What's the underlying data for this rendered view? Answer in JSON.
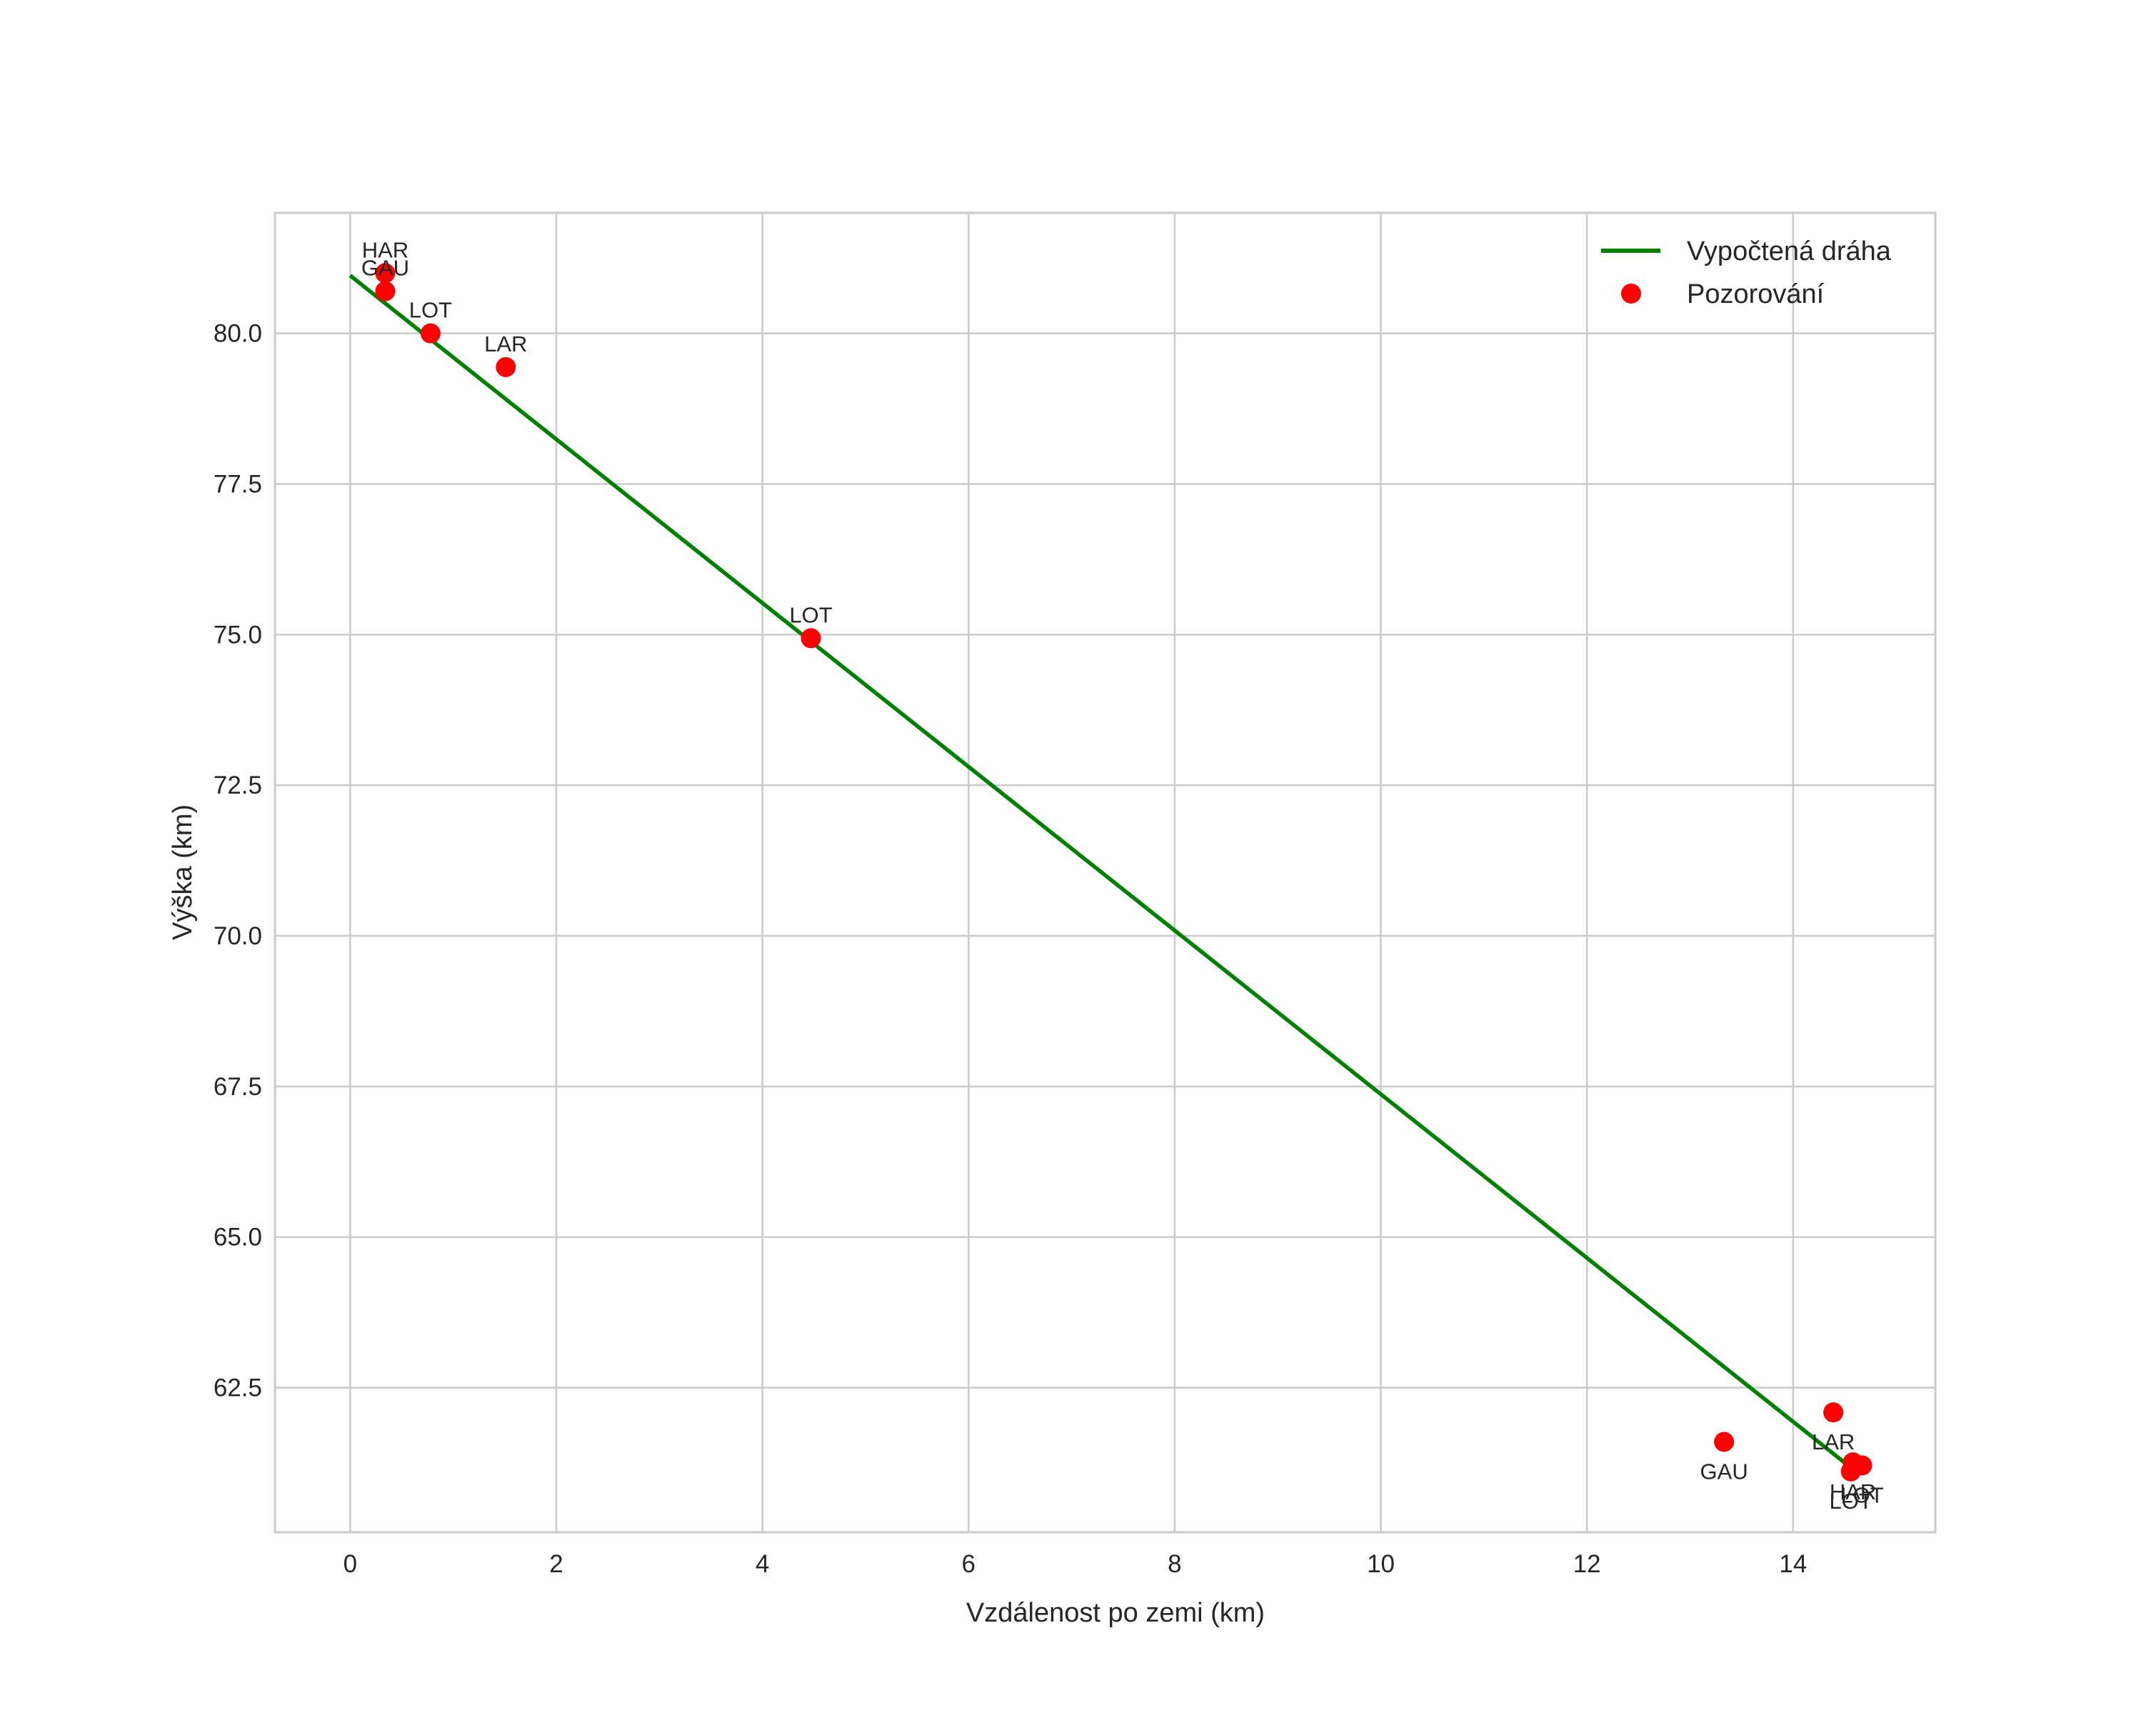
{
  "figure": {
    "background": "#ffffff",
    "grid_color": "#cccccc",
    "text_color": "#262626"
  },
  "chart_data": {
    "type": "scatter",
    "title": "",
    "xlabel": "Vzdálenost po zemi (km)",
    "ylabel": "Výška (km)",
    "xlim": [
      -0.73,
      15.38
    ],
    "ylim": [
      60.1,
      82.0
    ],
    "xticks": [
      0,
      2,
      4,
      6,
      8,
      10,
      12,
      14
    ],
    "xtick_labels": [
      "0",
      "2",
      "4",
      "6",
      "8",
      "10",
      "12",
      "14"
    ],
    "yticks": [
      62.5,
      65.0,
      67.5,
      70.0,
      72.5,
      75.0,
      77.5,
      80.0
    ],
    "ytick_labels": [
      "62.5",
      "65.0",
      "67.5",
      "70.0",
      "72.5",
      "75.0",
      "77.5",
      "80.0"
    ],
    "grid": true,
    "legend_position": "upper right",
    "series": [
      {
        "name": "Vypočtená dráha",
        "type": "line",
        "color": "#008000",
        "x": [
          0.0,
          14.6
        ],
        "y": [
          80.96,
          61.12
        ]
      },
      {
        "name": "Pozorování",
        "type": "scatter",
        "color": "#ff0000",
        "points": [
          {
            "x": 0.34,
            "y": 81.0,
            "label": "HAR",
            "label_pos": "above"
          },
          {
            "x": 0.34,
            "y": 80.7,
            "label": "GAU",
            "label_pos": "above"
          },
          {
            "x": 0.78,
            "y": 80.0,
            "label": "LOT",
            "label_pos": "above"
          },
          {
            "x": 1.51,
            "y": 79.44,
            "label": "LAR",
            "label_pos": "above"
          },
          {
            "x": 4.47,
            "y": 74.94,
            "label": "LOT",
            "label_pos": "above"
          },
          {
            "x": 13.33,
            "y": 61.6,
            "label": "GAU",
            "label_pos": "below"
          },
          {
            "x": 14.39,
            "y": 62.09,
            "label": "LAR",
            "label_pos": "below"
          },
          {
            "x": 14.58,
            "y": 61.26,
            "label": "HAR",
            "label_pos": "below"
          },
          {
            "x": 14.67,
            "y": 61.21,
            "label": "LOT",
            "label_pos": "below"
          },
          {
            "x": 14.56,
            "y": 61.11,
            "label": "LOT",
            "label_pos": "below"
          }
        ]
      }
    ]
  },
  "legend": {
    "items": [
      {
        "label": "Vypočtená dráha",
        "symbol": "line",
        "color": "#008000"
      },
      {
        "label": "Pozorování",
        "symbol": "circle-marker",
        "color": "#ff0000"
      }
    ]
  }
}
